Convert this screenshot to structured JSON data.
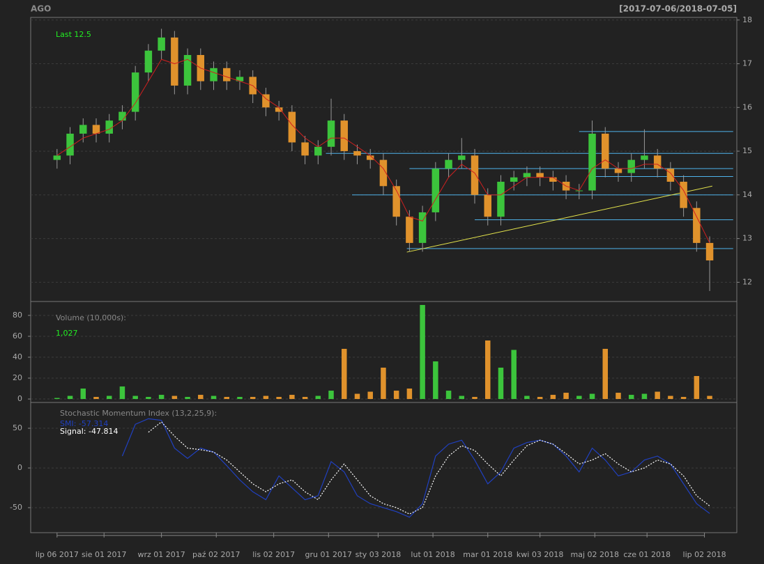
{
  "chart_data": [
    {
      "type": "candlestick",
      "title": "AGO",
      "subtitle": "[2017-07-06/2018-07-05]",
      "annotation": "Last 12.5",
      "up_color": "#3cc43c",
      "down_color": "#e0922c",
      "ma_color": "#d02020",
      "x": [
        0,
        5,
        10,
        15,
        20,
        25,
        30,
        35,
        40,
        45,
        50,
        55,
        60,
        65,
        70,
        75,
        80,
        85,
        90,
        95,
        100,
        105,
        110,
        115,
        120,
        125,
        130,
        135,
        140,
        145,
        150,
        155,
        160,
        165,
        170,
        175,
        180,
        185,
        190,
        195,
        200,
        205,
        210,
        215,
        220,
        225,
        230,
        235,
        240,
        245,
        250
      ],
      "open": [
        14.8,
        14.9,
        15.4,
        15.6,
        15.4,
        15.7,
        15.9,
        16.8,
        17.3,
        17.6,
        16.5,
        17.2,
        16.6,
        16.9,
        16.6,
        16.7,
        16.3,
        16.0,
        15.9,
        15.2,
        14.9,
        15.1,
        15.7,
        15.0,
        14.9,
        14.8,
        14.2,
        13.5,
        12.9,
        13.6,
        14.6,
        14.8,
        14.9,
        14.0,
        13.5,
        14.3,
        14.4,
        14.5,
        14.4,
        14.3,
        14.1,
        14.1,
        15.4,
        14.6,
        14.5,
        14.8,
        14.9,
        14.6,
        14.3,
        13.7,
        12.9
      ],
      "high": [
        15.05,
        15.55,
        15.75,
        15.75,
        15.85,
        16.05,
        16.95,
        17.45,
        17.8,
        17.75,
        17.35,
        17.35,
        17.05,
        17.05,
        16.85,
        16.85,
        16.45,
        16.15,
        16.05,
        15.35,
        15.25,
        16.2,
        15.85,
        15.15,
        15.05,
        14.95,
        14.35,
        13.65,
        13.75,
        14.75,
        14.95,
        15.3,
        15.05,
        14.15,
        14.45,
        14.55,
        14.65,
        14.65,
        14.55,
        14.45,
        14.25,
        15.7,
        15.55,
        14.75,
        14.95,
        15.5,
        15.05,
        14.75,
        14.45,
        13.85,
        13.05
      ],
      "low": [
        14.6,
        14.7,
        15.2,
        15.2,
        15.2,
        15.5,
        15.7,
        16.6,
        17.1,
        16.3,
        16.3,
        16.4,
        16.4,
        16.4,
        16.4,
        16.1,
        15.8,
        15.7,
        15.0,
        14.7,
        14.7,
        14.9,
        14.8,
        14.7,
        14.6,
        14.0,
        13.3,
        12.7,
        12.7,
        13.4,
        14.4,
        14.6,
        13.8,
        13.3,
        13.3,
        14.1,
        14.2,
        14.2,
        14.1,
        13.9,
        13.9,
        13.9,
        14.4,
        14.3,
        14.3,
        14.6,
        14.4,
        14.1,
        13.5,
        12.7,
        11.8
      ],
      "close": [
        14.9,
        15.4,
        15.6,
        15.4,
        15.7,
        15.9,
        16.8,
        17.3,
        17.6,
        16.5,
        17.2,
        16.6,
        16.9,
        16.6,
        16.7,
        16.3,
        16.0,
        15.9,
        15.2,
        14.9,
        15.1,
        15.7,
        15.0,
        14.9,
        14.8,
        14.2,
        13.5,
        12.9,
        13.6,
        14.6,
        14.8,
        14.9,
        14.0,
        13.5,
        14.3,
        14.4,
        14.5,
        14.4,
        14.3,
        14.1,
        14.1,
        15.4,
        14.6,
        14.5,
        14.8,
        14.9,
        14.6,
        14.3,
        13.7,
        12.9,
        12.5
      ],
      "ma": [
        14.9,
        15.1,
        15.3,
        15.4,
        15.5,
        15.7,
        16.1,
        16.6,
        17.1,
        17.0,
        17.1,
        16.9,
        16.8,
        16.7,
        16.6,
        16.5,
        16.2,
        16.0,
        15.6,
        15.3,
        15.1,
        15.3,
        15.3,
        15.1,
        14.9,
        14.6,
        14.1,
        13.5,
        13.4,
        13.9,
        14.4,
        14.7,
        14.5,
        14.0,
        14.0,
        14.2,
        14.4,
        14.4,
        14.4,
        14.2,
        14.1,
        14.6,
        14.8,
        14.6,
        14.6,
        14.7,
        14.7,
        14.5,
        14.1,
        13.5,
        12.9
      ],
      "hlines_color": "#4fb4ec",
      "hlines": [
        {
          "y": 15.45,
          "x": [
            200,
            259
          ]
        },
        {
          "y": 14.95,
          "x": [
            103,
            259
          ]
        },
        {
          "y": 14.6,
          "x": [
            135,
            259
          ]
        },
        {
          "y": 14.42,
          "x": [
            206,
            259
          ]
        },
        {
          "y": 14.0,
          "x": [
            113,
            259
          ]
        },
        {
          "y": 13.43,
          "x": [
            160,
            259
          ]
        },
        {
          "y": 12.77,
          "x": [
            134,
            259
          ]
        }
      ],
      "trendline": {
        "color": "#e6e64c",
        "x": [
          134,
          251
        ],
        "y": [
          12.69,
          14.2
        ]
      },
      "xlim": [
        -10.1,
        260.4
      ],
      "ylim": [
        11.56,
        18.06
      ],
      "yticks": [
        12,
        13,
        14,
        15,
        16,
        17,
        18
      ],
      "grid": true
    },
    {
      "type": "bar",
      "annotation": "Volume (10,000s):",
      "last_label": "1,027",
      "x": [
        0,
        5,
        10,
        15,
        20,
        25,
        30,
        35,
        40,
        45,
        50,
        55,
        60,
        65,
        70,
        75,
        80,
        85,
        90,
        95,
        100,
        105,
        110,
        115,
        120,
        125,
        130,
        135,
        140,
        145,
        150,
        155,
        160,
        165,
        170,
        175,
        180,
        185,
        190,
        195,
        200,
        205,
        210,
        215,
        220,
        225,
        230,
        235,
        240,
        245,
        250
      ],
      "values": [
        1,
        3,
        10,
        2,
        3,
        12,
        3,
        2,
        4,
        3,
        2,
        4,
        3,
        2,
        2,
        2,
        3,
        2,
        4,
        2,
        3,
        8,
        48,
        5,
        7,
        30,
        8,
        10,
        90,
        36,
        8,
        3,
        2,
        56,
        30,
        47,
        3,
        2,
        4,
        6,
        3,
        5,
        48,
        6,
        4,
        5,
        7,
        3,
        2,
        22,
        3
      ],
      "xlim": [
        -10.1,
        260.4
      ],
      "ylim": [
        -3.3,
        93.3
      ],
      "yticks": [
        0,
        20,
        40,
        60,
        80
      ],
      "grid": true
    },
    {
      "type": "line",
      "annotation": "Stochastic Momentum Index (13,2,25,9):",
      "x": [
        0,
        5,
        10,
        15,
        20,
        25,
        30,
        35,
        40,
        45,
        50,
        55,
        60,
        65,
        70,
        75,
        80,
        85,
        90,
        95,
        100,
        105,
        110,
        115,
        120,
        125,
        130,
        135,
        140,
        145,
        150,
        155,
        160,
        165,
        170,
        175,
        180,
        185,
        190,
        195,
        200,
        205,
        210,
        215,
        220,
        225,
        230,
        235,
        240,
        245,
        250
      ],
      "series": [
        {
          "name": "SMI: -57.314",
          "color": "#2040c0",
          "dashed": false,
          "values": [
            null,
            null,
            null,
            null,
            null,
            15,
            55,
            62,
            60,
            25,
            12,
            25,
            20,
            3,
            -15,
            -30,
            -40,
            -10,
            -25,
            -40,
            -35,
            8,
            -5,
            -35,
            -45,
            -50,
            -55,
            -62,
            -45,
            15,
            30,
            35,
            10,
            -20,
            -5,
            25,
            32,
            35,
            30,
            15,
            -5,
            25,
            10,
            -10,
            -5,
            10,
            15,
            5,
            -20,
            -45,
            -57.314
          ]
        },
        {
          "name": "Signal: -47.814",
          "color": "#ffffff",
          "dashed": true,
          "values": [
            null,
            null,
            null,
            null,
            null,
            null,
            null,
            45,
            58,
            40,
            25,
            23,
            20,
            10,
            -5,
            -20,
            -30,
            -20,
            -15,
            -30,
            -40,
            -15,
            5,
            -15,
            -35,
            -45,
            -50,
            -58,
            -50,
            -10,
            15,
            28,
            22,
            5,
            -10,
            10,
            28,
            35,
            30,
            18,
            5,
            10,
            18,
            5,
            -5,
            0,
            10,
            5,
            -10,
            -35,
            -47.814
          ]
        }
      ],
      "xlim": [
        -10.1,
        260.4
      ],
      "ylim": [
        -81.5,
        82.5
      ],
      "yticks": [
        -50,
        0,
        50
      ],
      "grid": true,
      "xticks": [
        {
          "value": 0,
          "label": "lip 06 2017"
        },
        {
          "value": 18,
          "label": "sie 01 2017"
        },
        {
          "value": 40,
          "label": "wrz 01 2017"
        },
        {
          "value": 61,
          "label": "paź 02 2017"
        },
        {
          "value": 83,
          "label": "lis 02 2017"
        },
        {
          "value": 104,
          "label": "gru 01 2017"
        },
        {
          "value": 123,
          "label": "sty 03 2018"
        },
        {
          "value": 144,
          "label": "lut 01 2018"
        },
        {
          "value": 165,
          "label": "mar 01 2018"
        },
        {
          "value": 185,
          "label": "kwi 03 2018"
        },
        {
          "value": 206,
          "label": "maj 02 2018"
        },
        {
          "value": 226,
          "label": "cze 01 2018"
        },
        {
          "value": 248,
          "label": "lip 02 2018"
        }
      ]
    }
  ]
}
